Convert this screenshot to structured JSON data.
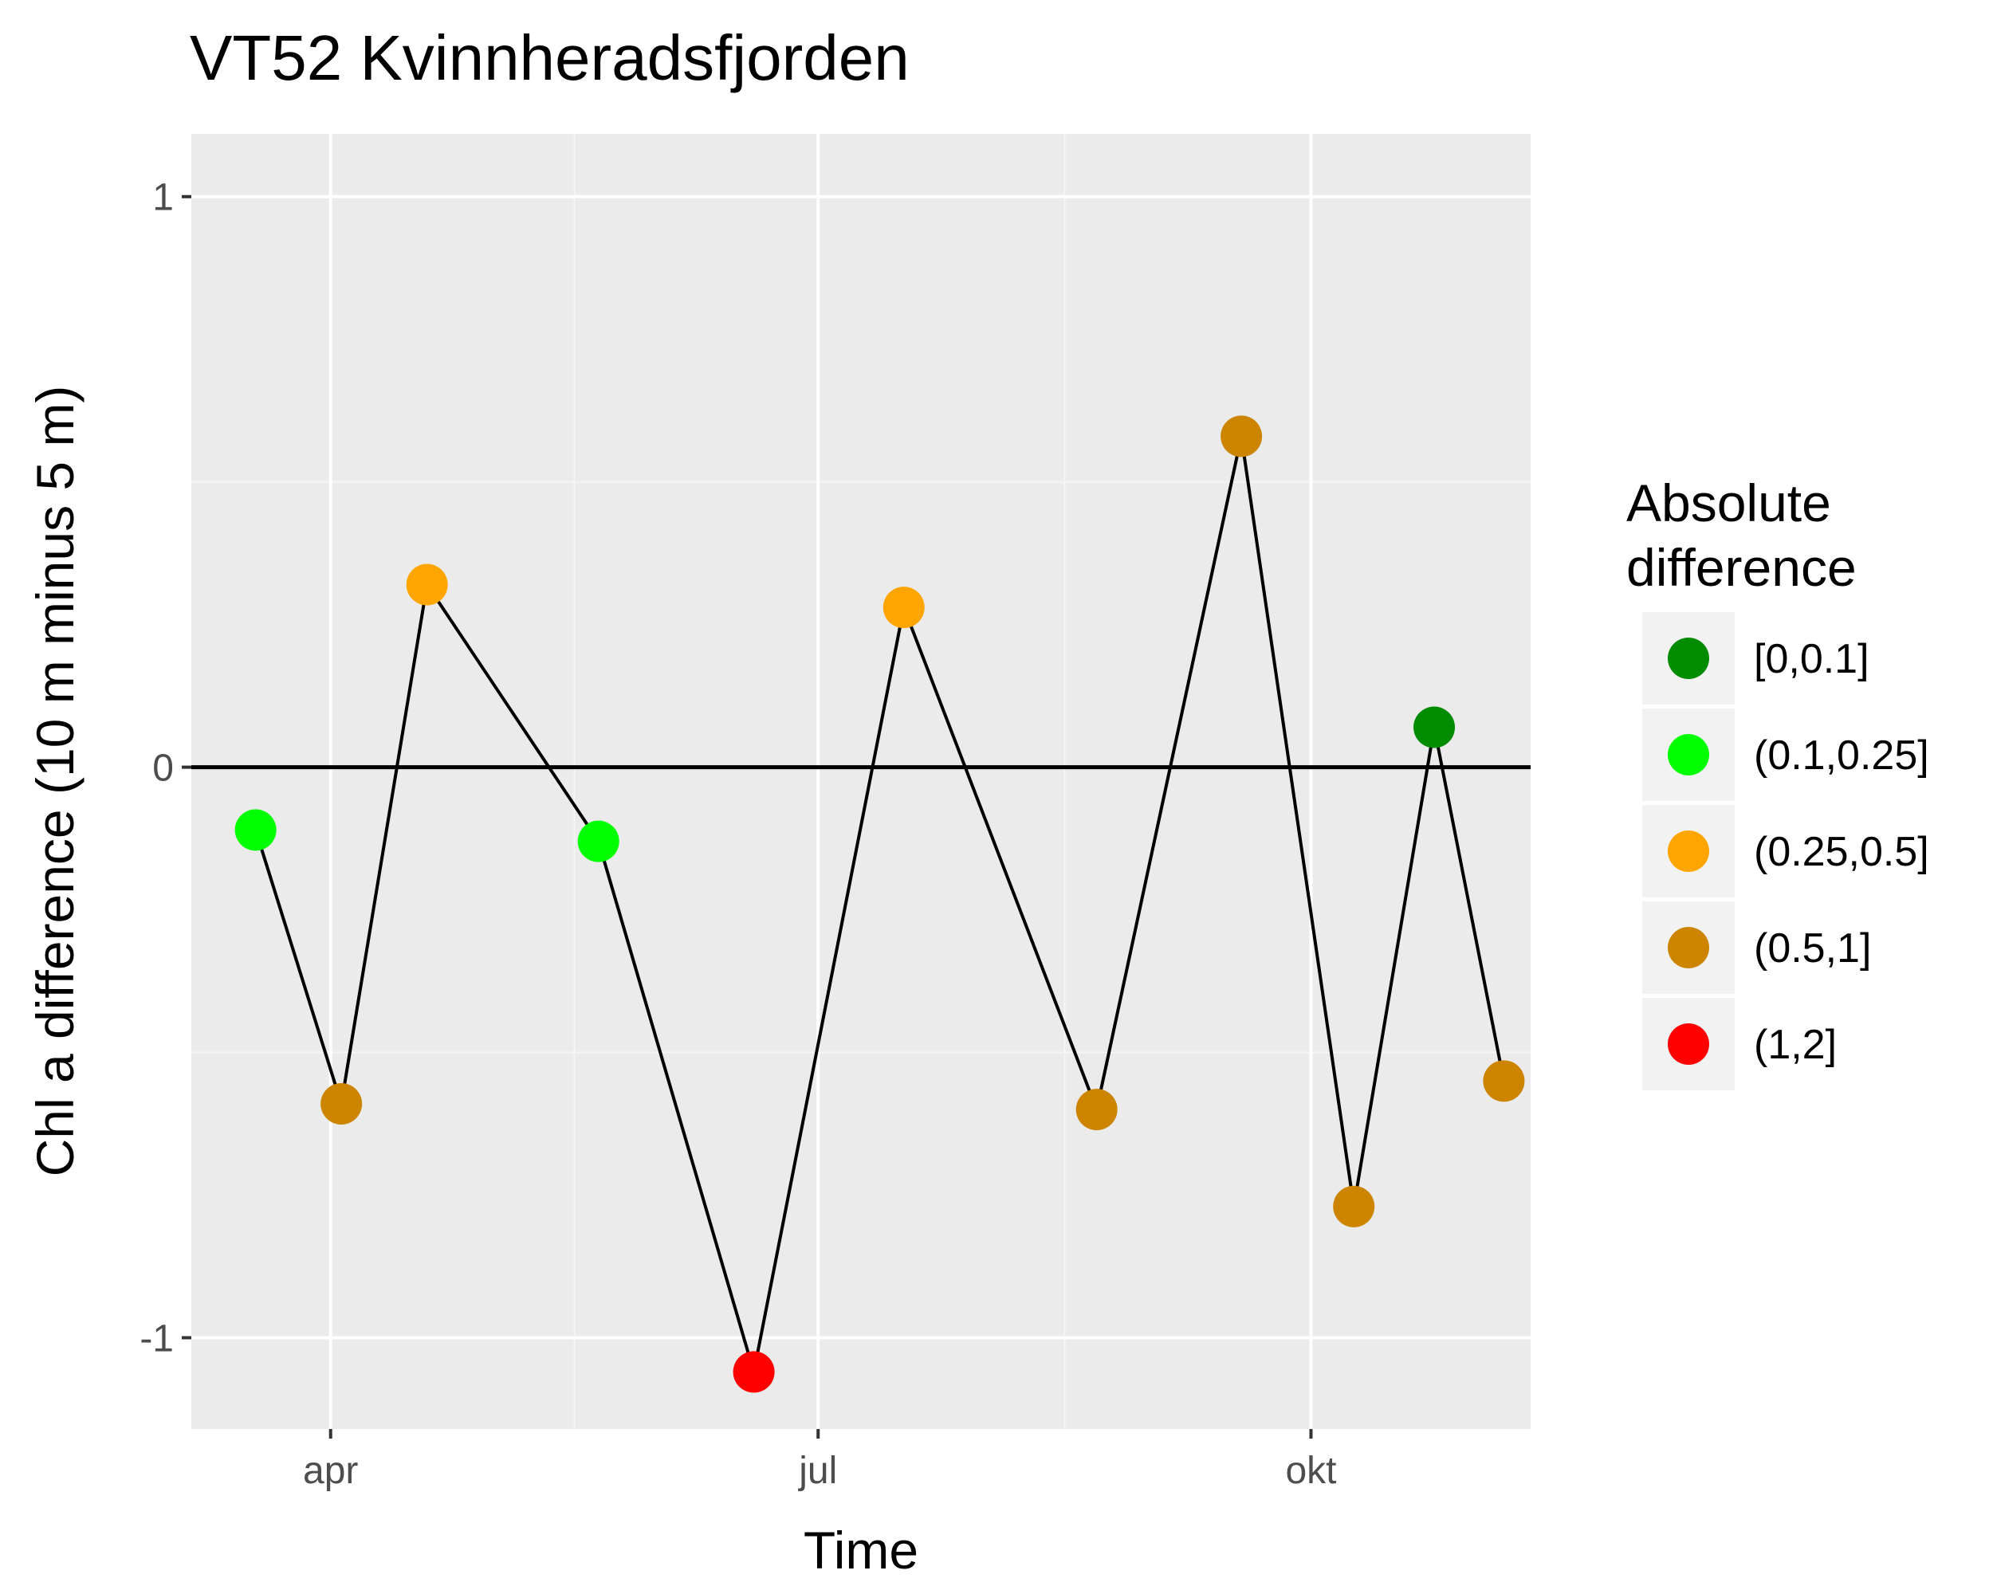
{
  "chart_data": {
    "type": "line",
    "title": "VT52 Kvinnheradsfjorden",
    "xlabel": "Time",
    "ylabel": "Chl a difference (10 m minus 5 m)",
    "x_ticks": [
      {
        "date": "2017-04-01",
        "label": "apr"
      },
      {
        "date": "2017-07-01",
        "label": "jul"
      },
      {
        "date": "2017-10-01",
        "label": "okt"
      }
    ],
    "y_ticks": [
      {
        "value": -1,
        "label": "-1"
      },
      {
        "value": 0,
        "label": "0"
      },
      {
        "value": 1,
        "label": "1"
      }
    ],
    "xlim": [
      "2017-03-06",
      "2017-11-11"
    ],
    "ylim": [
      -1.16,
      1.11
    ],
    "grid": true,
    "reference_line_y": 0,
    "points": [
      {
        "date": "2017-03-18",
        "value": -0.11,
        "class": "(0.1,0.25]"
      },
      {
        "date": "2017-04-03",
        "value": -0.59,
        "class": "(0.5,1]"
      },
      {
        "date": "2017-04-19",
        "value": 0.32,
        "class": "(0.25,0.5]"
      },
      {
        "date": "2017-05-21",
        "value": -0.13,
        "class": "(0.1,0.25]"
      },
      {
        "date": "2017-06-19",
        "value": -1.06,
        "class": "(1,2]"
      },
      {
        "date": "2017-07-17",
        "value": 0.28,
        "class": "(0.25,0.5]"
      },
      {
        "date": "2017-08-22",
        "value": -0.6,
        "class": "(0.5,1]"
      },
      {
        "date": "2017-09-18",
        "value": 0.58,
        "class": "(0.5,1]"
      },
      {
        "date": "2017-10-09",
        "value": -0.77,
        "class": "(0.5,1]"
      },
      {
        "date": "2017-10-24",
        "value": 0.07,
        "class": "[0,0.1]"
      },
      {
        "date": "2017-11-06",
        "value": -0.55,
        "class": "(0.5,1]"
      }
    ],
    "legend": {
      "title_lines": [
        "Absolute",
        "difference"
      ],
      "placement": "right",
      "entries": [
        {
          "label": "[0,0.1]",
          "color": "#008b00"
        },
        {
          "label": "(0.1,0.25]",
          "color": "#00ff00"
        },
        {
          "label": "(0.25,0.5]",
          "color": "#ffa500"
        },
        {
          "label": "(0.5,1]",
          "color": "#cd8500"
        },
        {
          "label": "(1,2]",
          "color": "#ff0000"
        }
      ]
    },
    "colors": {
      "panel_background": "#ebebeb",
      "grid_major": "#ffffff",
      "grid_minor": "#f5f5f5",
      "line": "#000000",
      "legend_key_background": "#f2f2f2"
    }
  }
}
